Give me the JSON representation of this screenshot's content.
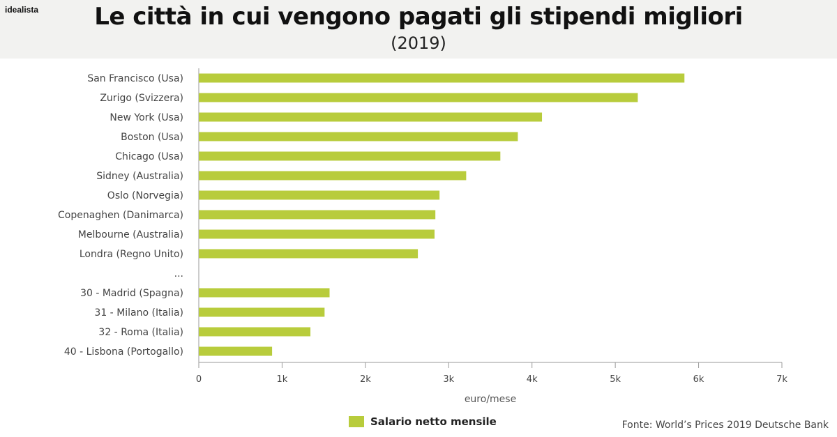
{
  "brand": "idealista",
  "colors": {
    "bar": "#b8cc3c",
    "axis": "#999999"
  },
  "chart_data": {
    "type": "bar",
    "orientation": "horizontal",
    "title": "Le città in cui vengono pagati gli stipendi migliori",
    "subtitle": "(2019)",
    "xlabel": "euro/mese",
    "xlim": [
      0,
      7000
    ],
    "xticks": [
      0,
      1000,
      2000,
      3000,
      4000,
      5000,
      6000,
      7000
    ],
    "xtick_labels": [
      "0",
      "1k",
      "2k",
      "3k",
      "4k",
      "5k",
      "6k",
      "7k"
    ],
    "categories": [
      "San Francisco (Usa)",
      "Zurigo (Svizzera)",
      "New York (Usa)",
      "Boston (Usa)",
      "Chicago (Usa)",
      "Sidney (Australia)",
      "Oslo (Norvegia)",
      "Copenaghen (Danimarca)",
      "Melbourne (Australia)",
      "Londra (Regno Unito)",
      "...",
      "30 - Madrid (Spagna)",
      "31 - Milano (Italia)",
      "32 - Roma (Italia)",
      "40 - Lisbona (Portogallo)"
    ],
    "series": [
      {
        "name": "Salario netto mensile",
        "values": [
          5830,
          5270,
          4120,
          3830,
          3620,
          3210,
          2890,
          2840,
          2830,
          2630,
          null,
          1570,
          1510,
          1340,
          880
        ]
      }
    ],
    "grid": false,
    "legend_position": "bottom-center"
  },
  "source": "Fonte: World’s Prices 2019 Deutsche Bank"
}
